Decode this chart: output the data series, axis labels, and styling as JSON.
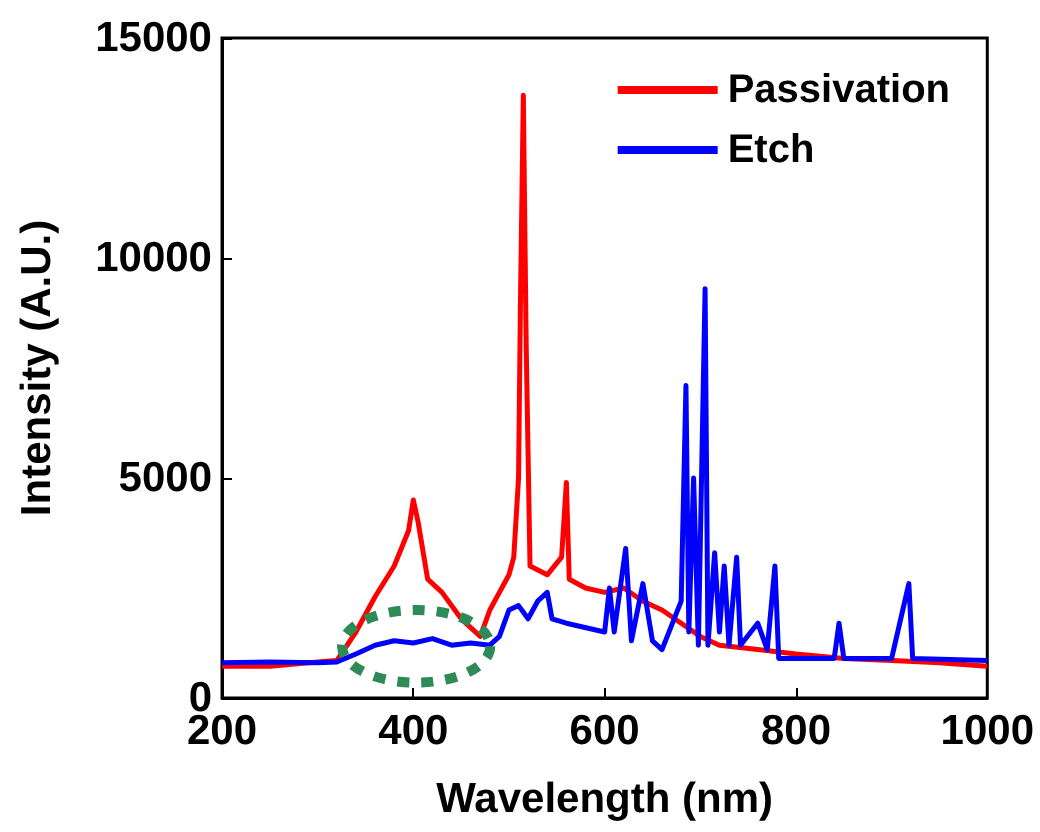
{
  "chart_data": {
    "type": "line",
    "xlabel": "Wavelength (nm)",
    "ylabel": "Intensity (A.U.)",
    "xlim": [
      200,
      1000
    ],
    "xticks": [
      200,
      400,
      600,
      800,
      1000
    ],
    "ylim": [
      0,
      15000
    ],
    "yticks": [
      0,
      5000,
      10000,
      15000
    ],
    "grid": false,
    "legend": "top right",
    "marker": "none",
    "line_style": "solid",
    "series": [
      {
        "name": "Passivation",
        "color": "#ff0000",
        "x": [
          200,
          250,
          300,
          320,
          340,
          360,
          380,
          395,
          400,
          405,
          415,
          430,
          450,
          470,
          480,
          490,
          500,
          505,
          510,
          512,
          515,
          518,
          522,
          540,
          555,
          560,
          563,
          580,
          600,
          620,
          640,
          660,
          680,
          700,
          720,
          760,
          800,
          850,
          900,
          950,
          1000
        ],
        "values": [
          720,
          720,
          820,
          850,
          1500,
          2300,
          3000,
          3800,
          4500,
          4000,
          2700,
          2400,
          1800,
          1400,
          2000,
          2400,
          2800,
          3200,
          5000,
          9000,
          13700,
          8000,
          3000,
          2800,
          3200,
          4900,
          2700,
          2500,
          2400,
          2500,
          2200,
          2000,
          1700,
          1400,
          1200,
          1100,
          1000,
          900,
          850,
          800,
          720
        ]
      },
      {
        "name": "Etch",
        "color": "#0000ff",
        "x": [
          200,
          250,
          300,
          320,
          340,
          360,
          380,
          400,
          420,
          440,
          460,
          480,
          490,
          500,
          510,
          520,
          530,
          540,
          545,
          560,
          600,
          605,
          610,
          622,
          628,
          640,
          650,
          660,
          680,
          685,
          688,
          693,
          698,
          705,
          708,
          715,
          720,
          725,
          730,
          738,
          742,
          760,
          770,
          778,
          782,
          800,
          840,
          845,
          850,
          900,
          918,
          922,
          1000
        ],
        "values": [
          800,
          820,
          800,
          820,
          1000,
          1200,
          1300,
          1250,
          1350,
          1200,
          1250,
          1200,
          1400,
          2000,
          2100,
          1800,
          2200,
          2400,
          1800,
          1700,
          1500,
          2500,
          1500,
          3400,
          1300,
          2600,
          1300,
          1100,
          2200,
          7100,
          1500,
          5000,
          1200,
          9300,
          1200,
          3300,
          1500,
          3000,
          1200,
          3200,
          1200,
          1700,
          1100,
          3000,
          900,
          900,
          900,
          1700,
          900,
          900,
          2600,
          900,
          850
        ]
      }
    ]
  }
}
